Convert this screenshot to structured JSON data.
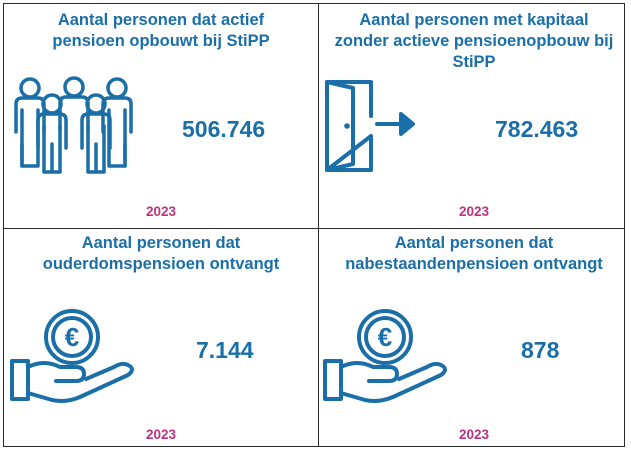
{
  "panels": [
    {
      "title": "Aantal personen dat actief pensioen opbouwt bij StiPP",
      "value": "506.746",
      "year": "2023",
      "icon": "people-group-icon"
    },
    {
      "title": "Aantal personen met kapitaal zonder actieve pensioenopbouw bij StiPP",
      "value": "782.463",
      "year": "2023",
      "icon": "door-exit-icon"
    },
    {
      "title": "Aantal personen dat ouderdomspensioen ontvangt",
      "value": "7.144",
      "year": "2023",
      "icon": "euro-coin-hand-icon"
    },
    {
      "title": "Aantal personen dat nabestaandenpensioen ontvangt",
      "value": "878",
      "year": "2023",
      "icon": "euro-coin-hand-icon"
    }
  ],
  "colors": {
    "accent": "#1b6fa8",
    "year": "#c0307f",
    "border": "#2b2b2b"
  }
}
